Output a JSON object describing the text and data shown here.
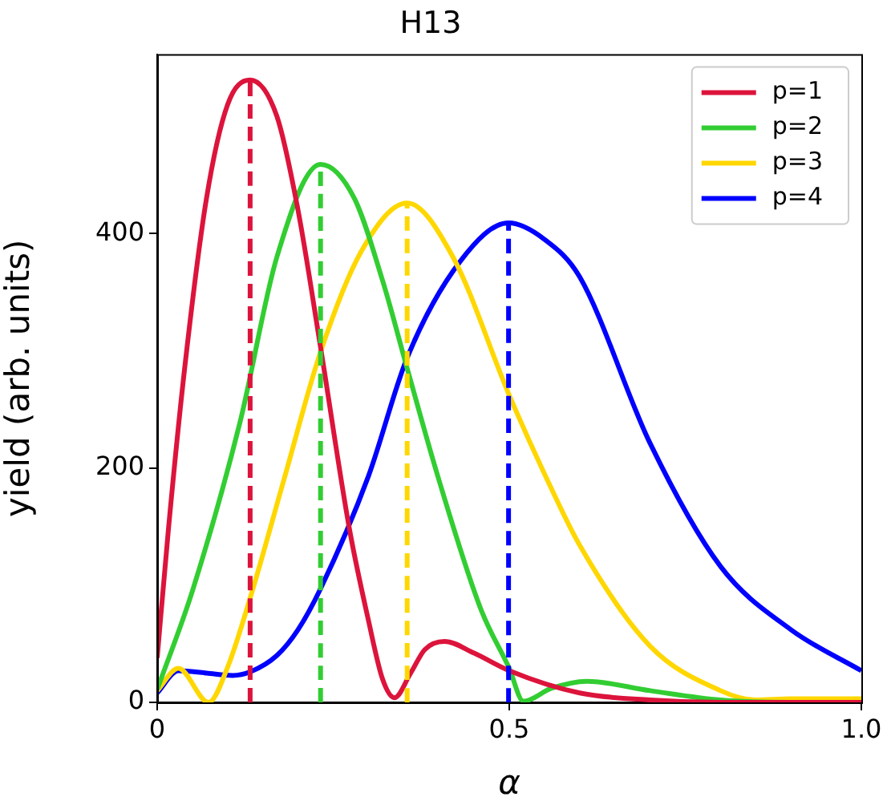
{
  "chart_data": {
    "type": "line",
    "title": "H13",
    "xlabel": "α",
    "ylabel": "yield (arb. units)",
    "xlim": [
      0,
      1
    ],
    "ylim": [
      0,
      553
    ],
    "xticks": [
      0,
      0.5,
      {
        "value": 1,
        "label": "1.0"
      }
    ],
    "yticks": [
      0,
      200,
      400
    ],
    "legend": "top right",
    "grid": false,
    "series": [
      {
        "name": "p=1",
        "color": "#dc143c",
        "x": [
          0,
          0.016,
          0.039,
          0.07,
          0.1,
          0.132,
          0.17,
          0.2,
          0.232,
          0.273,
          0.3,
          0.32,
          0.337,
          0.36,
          0.38,
          0.408,
          0.45,
          0.5,
          0.6,
          0.7,
          0.8,
          0.9,
          1
        ],
        "values": [
          38,
          148,
          285,
          430,
          510,
          531,
          500,
          420,
          303,
          148,
          70,
          20,
          4,
          25,
          45,
          52,
          42,
          27,
          8,
          2,
          0,
          0,
          0
        ]
      },
      {
        "name": "p=2",
        "color": "#32cd32",
        "x": [
          0,
          0.05,
          0.118,
          0.17,
          0.232,
          0.28,
          0.32,
          0.355,
          0.4,
          0.46,
          0.5,
          0.52,
          0.56,
          0.61,
          0.7,
          0.8,
          0.9,
          1
        ],
        "values": [
          11,
          95,
          240,
          380,
          459,
          430,
          360,
          285,
          190,
          79,
          29,
          1,
          12,
          18,
          10,
          2,
          0,
          0
        ]
      },
      {
        "name": "p=3",
        "color": "#ffd700",
        "x": [
          0,
          0.03,
          0.073,
          0.1,
          0.132,
          0.18,
          0.232,
          0.29,
          0.355,
          0.42,
          0.5,
          0.55,
          0.6,
          0.7,
          0.8,
          0.85,
          0.9,
          1
        ],
        "values": [
          10,
          29,
          0,
          30,
          89,
          190,
          299,
          385,
          426,
          380,
          262,
          195,
          134,
          48,
          10,
          2,
          3,
          3
        ]
      },
      {
        "name": "p=4",
        "color": "#0000ff",
        "x": [
          0,
          0.03,
          0.07,
          0.107,
          0.132,
          0.17,
          0.2,
          0.232,
          0.3,
          0.355,
          0.43,
          0.499,
          0.55,
          0.6,
          0.7,
          0.8,
          0.9,
          1
        ],
        "values": [
          8,
          27,
          25,
          23,
          26,
          40,
          62,
          97,
          193,
          294,
          376,
          409,
          395,
          363,
          221,
          116,
          62,
          27
        ]
      },
      {
        "color": "#dc143c",
        "line_style": "dashed",
        "x": [
          0.132,
          0.132
        ],
        "values": [
          0,
          531
        ]
      },
      {
        "color": "#32cd32",
        "line_style": "dashed",
        "x": [
          0.232,
          0.232
        ],
        "values": [
          0,
          459
        ]
      },
      {
        "color": "#ffd700",
        "line_style": "dashed",
        "x": [
          0.355,
          0.355
        ],
        "values": [
          0,
          426
        ]
      },
      {
        "color": "#0000ff",
        "line_style": "dashed",
        "x": [
          0.499,
          0.499
        ],
        "values": [
          0,
          409
        ]
      }
    ]
  }
}
